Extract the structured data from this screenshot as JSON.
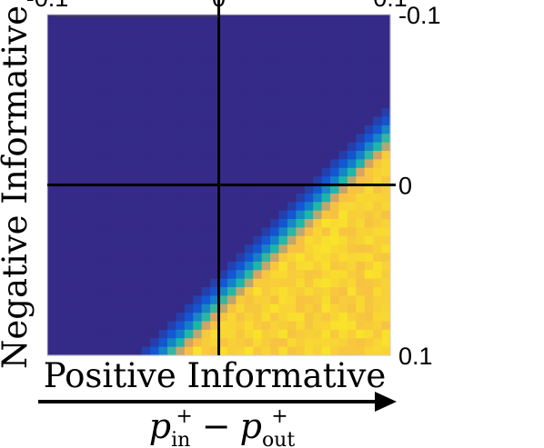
{
  "chart_data": {
    "type": "heatmap",
    "title": "",
    "xlabel": "Positive Informative",
    "ylabel": "Negative Informative",
    "x_axis_math": {
      "base": "p",
      "term1_sub": "in",
      "term1_sup": "+",
      "operator": "−",
      "term2_sub": "out",
      "term2_sup": "+"
    },
    "xlim": [
      -0.1,
      0.1
    ],
    "ylim": [
      -0.1,
      0.1
    ],
    "x_ticks": [
      "-0.1",
      "0",
      "0.1"
    ],
    "y_ticks": [
      "-0.1",
      "0",
      "0.1"
    ],
    "y_ticks_position": "right",
    "x_ticks_position": "top",
    "y_direction": "top-to-bottom",
    "crosshair_at": [
      0,
      0
    ],
    "grid": false,
    "legend": "none",
    "colormap": "parula",
    "colors": {
      "low": "#352a87",
      "mid_blue": "#0f5cdd",
      "teal": "#1eb8a8",
      "orange": "#f5a05a",
      "high": "#f9e32a"
    },
    "surface": {
      "description_of_values": "value on 0-1 colormap scale",
      "boundary_x_plus_y_high_edge": 0.083,
      "boundary_x_plus_y_low_edge": 0.05,
      "saturated_low_region": "x + y below boundary (top-right corner)"
    }
  }
}
